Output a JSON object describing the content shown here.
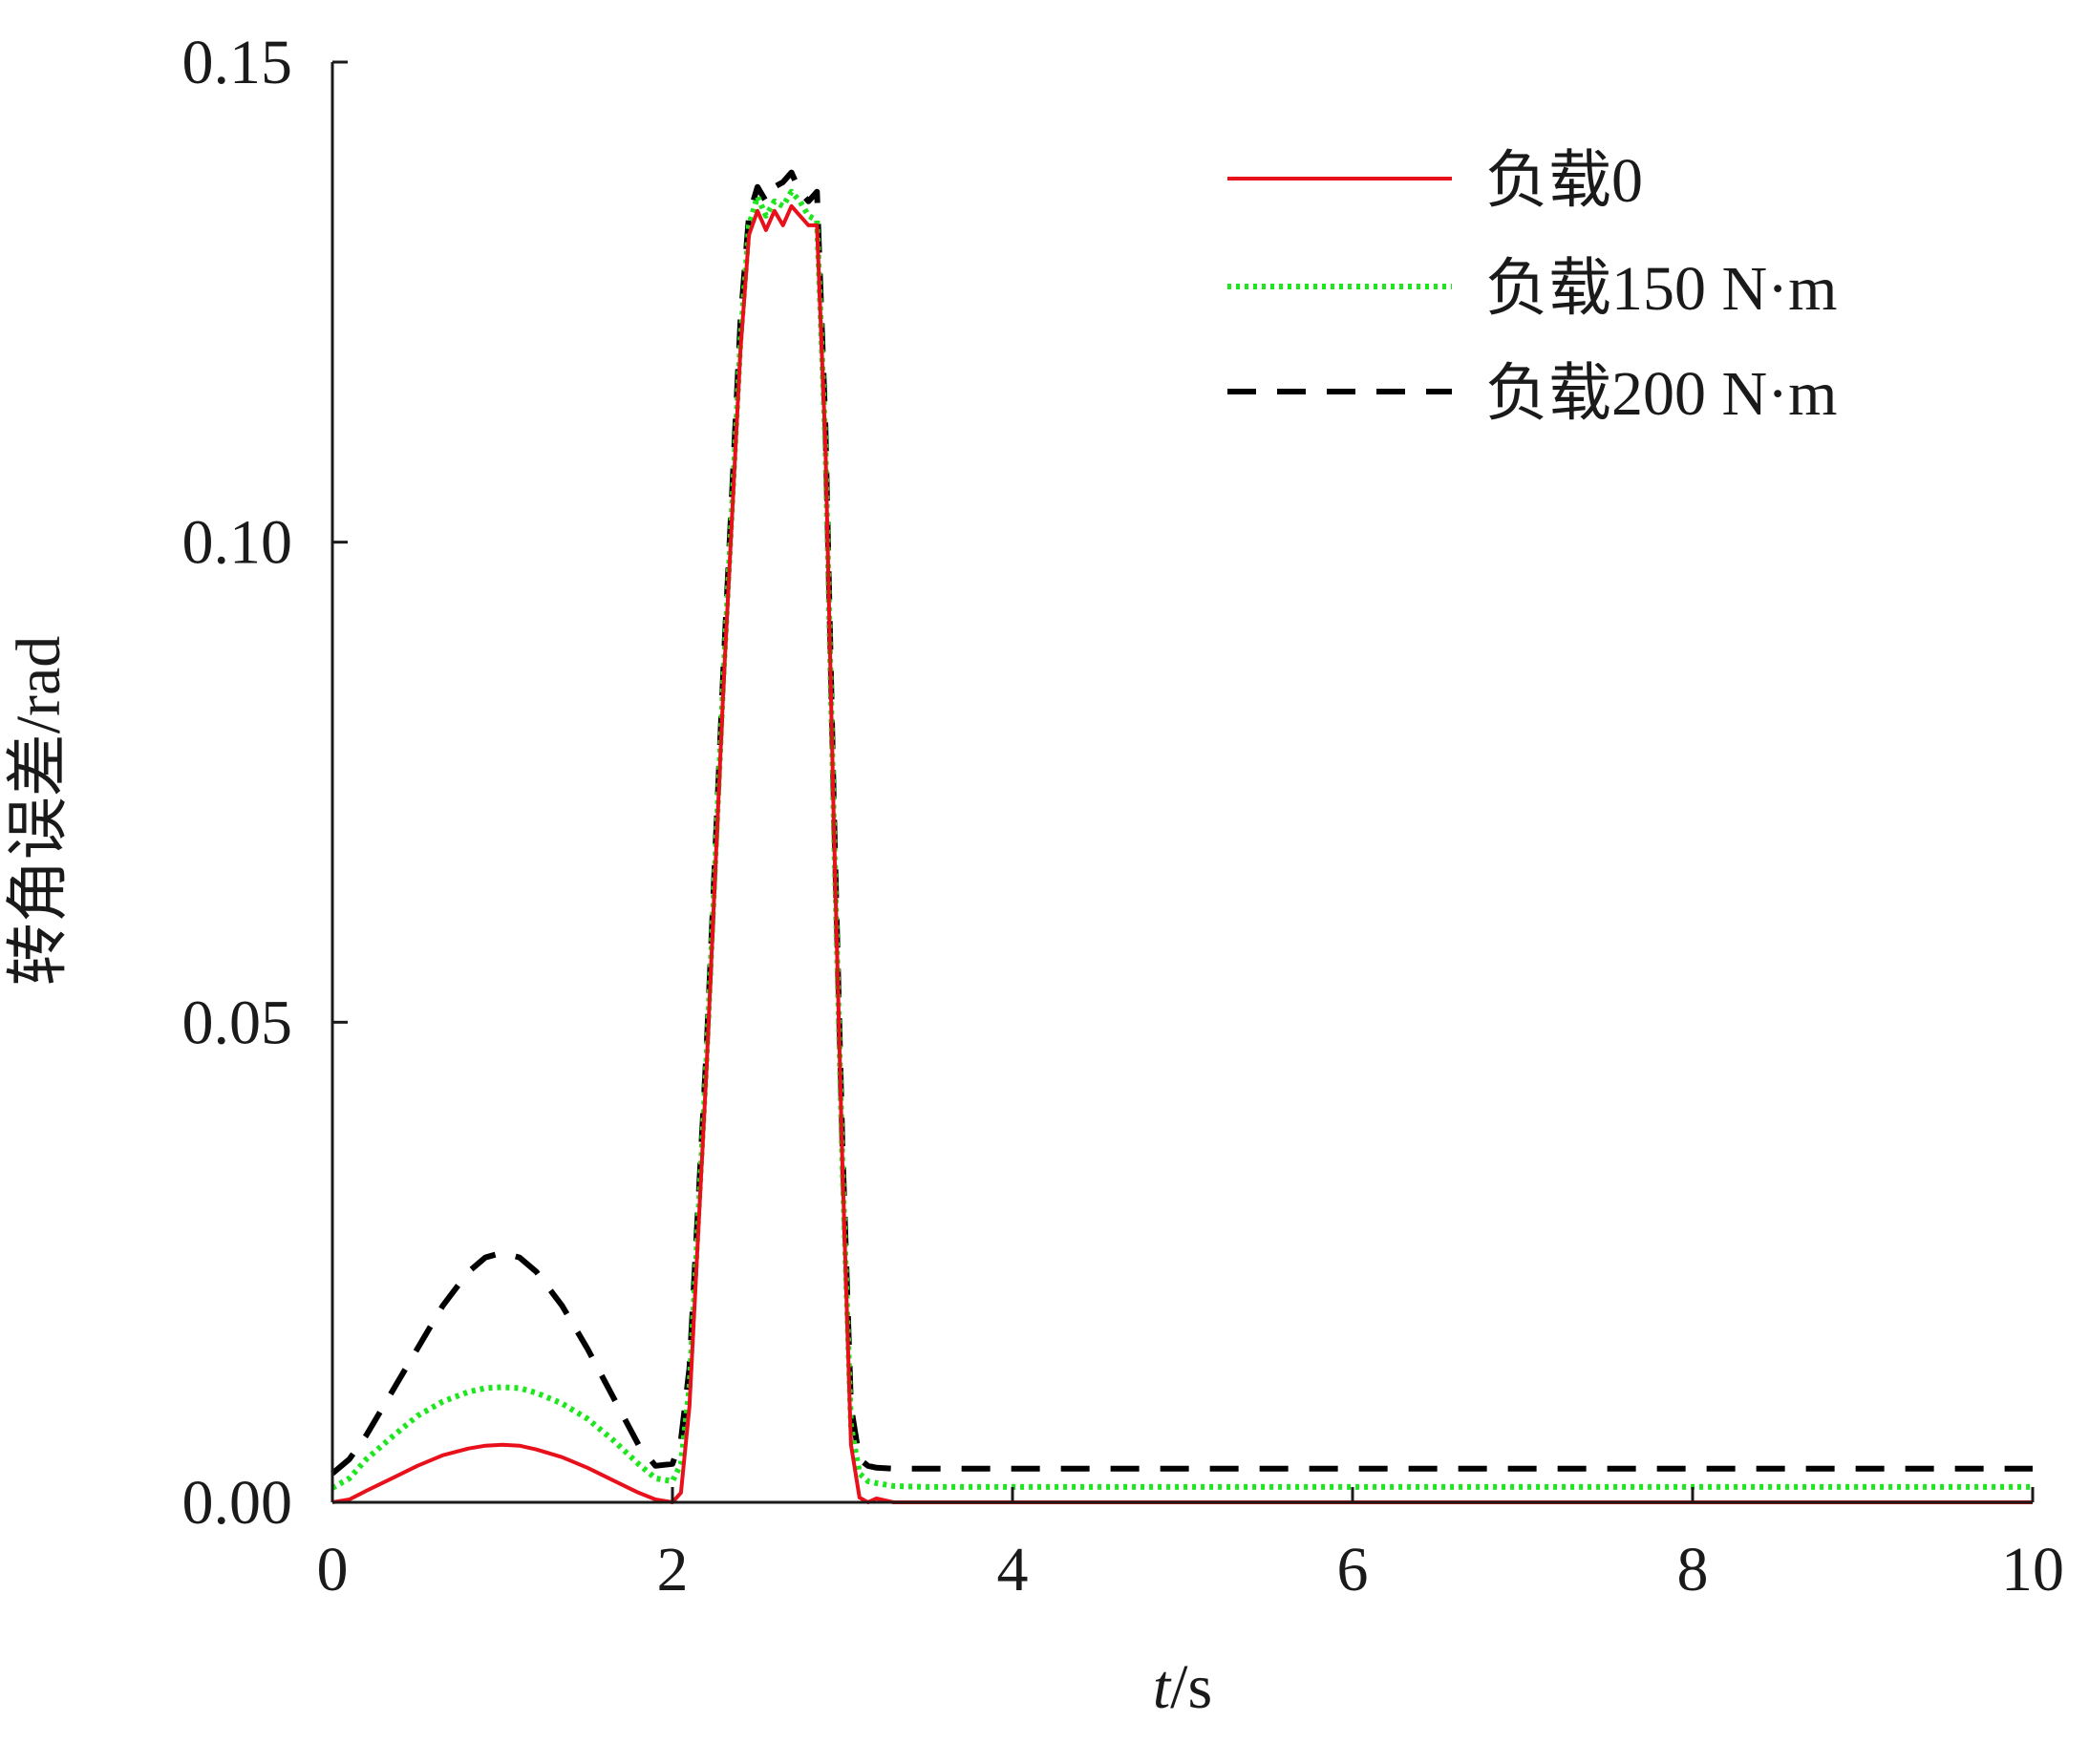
{
  "chart_data": {
    "type": "line",
    "title": "",
    "xlabel": "t/s",
    "xlabel_parts": {
      "var": "t",
      "unit": "/s"
    },
    "ylabel": "转角误差/rad",
    "xlim": [
      0,
      10
    ],
    "ylim": [
      0,
      0.15
    ],
    "xticks": [
      0,
      2,
      4,
      6,
      8,
      10
    ],
    "xtick_labels": [
      "0",
      "2",
      "4",
      "6",
      "8",
      "10"
    ],
    "yticks": [
      0,
      0.05,
      0.1,
      0.15
    ],
    "ytick_labels": [
      "0.00",
      "0.05",
      "0.10",
      "0.15"
    ],
    "grid": false,
    "legend_position": "top-right",
    "series": [
      {
        "name": "负载0",
        "color": "#e8101a",
        "style": "solid",
        "x": [
          0,
          0.1,
          0.2,
          0.35,
          0.5,
          0.65,
          0.8,
          0.9,
          1.0,
          1.1,
          1.2,
          1.35,
          1.5,
          1.65,
          1.8,
          1.9,
          2.0,
          2.05,
          2.1,
          2.2,
          2.3,
          2.4,
          2.45,
          2.5,
          2.55,
          2.6,
          2.65,
          2.7,
          2.75,
          2.8,
          2.85,
          2.9,
          2.95,
          3.0,
          3.05,
          3.1,
          3.15,
          3.2,
          3.3,
          3.4,
          3.6,
          4.0,
          5.0,
          6.0,
          7.0,
          8.0,
          9.0,
          10.0
        ],
        "values": [
          0.0,
          0.0003,
          0.0012,
          0.0025,
          0.0038,
          0.0049,
          0.0056,
          0.0059,
          0.006,
          0.0059,
          0.0055,
          0.0047,
          0.0036,
          0.0023,
          0.001,
          0.0003,
          0.0,
          0.001,
          0.01,
          0.045,
          0.085,
          0.12,
          0.132,
          0.1345,
          0.1325,
          0.1345,
          0.133,
          0.135,
          0.134,
          0.133,
          0.133,
          0.11,
          0.07,
          0.035,
          0.006,
          0.0005,
          0.0,
          0.0004,
          0.0,
          0.0,
          0.0,
          0.0,
          0.0,
          0.0,
          0.0,
          0.0,
          0.0,
          0.0
        ]
      },
      {
        "name": "负载150 N·m",
        "color": "#1ee61e",
        "style": "dotted",
        "x": [
          0,
          0.1,
          0.2,
          0.35,
          0.5,
          0.65,
          0.8,
          0.9,
          1.0,
          1.1,
          1.2,
          1.35,
          1.5,
          1.65,
          1.8,
          1.9,
          2.0,
          2.05,
          2.1,
          2.2,
          2.3,
          2.4,
          2.45,
          2.5,
          2.55,
          2.6,
          2.65,
          2.7,
          2.75,
          2.8,
          2.85,
          2.9,
          2.95,
          3.0,
          3.05,
          3.1,
          3.15,
          3.2,
          3.3,
          3.5,
          4.0,
          5.0,
          6.0,
          7.0,
          8.0,
          9.0,
          10.0
        ],
        "values": [
          0.0015,
          0.0025,
          0.0045,
          0.0068,
          0.009,
          0.0105,
          0.0115,
          0.0119,
          0.012,
          0.0119,
          0.0114,
          0.0103,
          0.0087,
          0.0065,
          0.004,
          0.0025,
          0.0022,
          0.004,
          0.012,
          0.046,
          0.086,
          0.121,
          0.133,
          0.136,
          0.134,
          0.1355,
          0.135,
          0.1365,
          0.1355,
          0.134,
          0.1335,
          0.11,
          0.07,
          0.035,
          0.008,
          0.003,
          0.0022,
          0.002,
          0.0017,
          0.0016,
          0.0016,
          0.0016,
          0.0016,
          0.0016,
          0.0016,
          0.0016,
          0.0016
        ]
      },
      {
        "name": "负载200 N·m",
        "color": "#000000",
        "style": "dashed",
        "x": [
          0,
          0.1,
          0.2,
          0.35,
          0.5,
          0.65,
          0.8,
          0.9,
          1.0,
          1.1,
          1.2,
          1.35,
          1.5,
          1.65,
          1.8,
          1.9,
          2.0,
          2.05,
          2.1,
          2.2,
          2.3,
          2.4,
          2.45,
          2.5,
          2.55,
          2.6,
          2.65,
          2.7,
          2.75,
          2.8,
          2.85,
          2.9,
          2.95,
          3.0,
          3.05,
          3.1,
          3.15,
          3.2,
          3.3,
          3.5,
          4.0,
          5.0,
          6.0,
          7.0,
          8.0,
          9.0,
          10.0
        ],
        "values": [
          0.003,
          0.0045,
          0.007,
          0.0115,
          0.016,
          0.0205,
          0.024,
          0.0255,
          0.026,
          0.0255,
          0.024,
          0.0205,
          0.016,
          0.011,
          0.006,
          0.0038,
          0.004,
          0.0065,
          0.014,
          0.047,
          0.087,
          0.123,
          0.134,
          0.137,
          0.1355,
          0.137,
          0.1375,
          0.1385,
          0.1365,
          0.1355,
          0.1365,
          0.112,
          0.072,
          0.037,
          0.01,
          0.0045,
          0.0038,
          0.0036,
          0.0035,
          0.0035,
          0.0035,
          0.0035,
          0.0035,
          0.0035,
          0.0035,
          0.0035,
          0.0035
        ]
      }
    ]
  }
}
